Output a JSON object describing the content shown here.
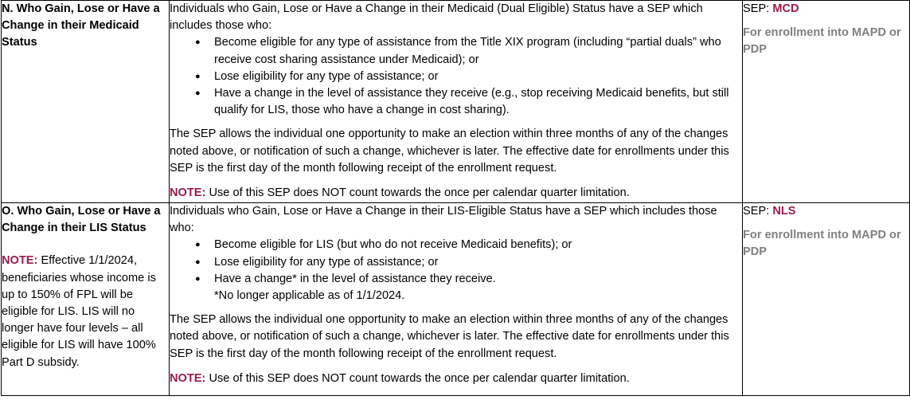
{
  "rows": [
    {
      "col1": {
        "title": "N.  Who Gain, Lose or Have a Change in their Medicaid Status"
      },
      "col2": {
        "intro": "Individuals who Gain, Lose or Have a Change in their Medicaid (Dual Eligible) Status have a SEP which includes those who:",
        "bullets": [
          "Become eligible for any type of assistance from the Title XIX program (including “partial duals” who receive cost sharing assistance under Medicaid); or",
          "Lose eligibility for any type of assistance; or",
          "Have a change in the level of assistance they receive (e.g., stop receiving Medicaid benefits, but still qualify for LIS, those who have a change in cost sharing)."
        ],
        "body": "The SEP allows the individual one opportunity to make an election within three months of any of the changes noted above, or notification of such a change, whichever is later.  The effective date for enrollments under this SEP is the first day of the month following receipt of the enrollment request.",
        "note_label": "NOTE:",
        "note_text": "  Use of this SEP does NOT count towards the once per calendar quarter limitation."
      },
      "col3": {
        "sep_label": "SEP:  ",
        "sep_code": "MCD",
        "enrollment": "For enrollment into MAPD or PDP"
      }
    },
    {
      "col1": {
        "title": "O.  Who Gain, Lose or Have a Change in their LIS Status",
        "note_label": "NOTE:",
        "note_text": "  Effective 1/1/2024, beneficiaries whose income is up to 150% of FPL will be eligible for LIS.  LIS will no longer have four levels – all eligible for LIS will have 100% Part D subsidy."
      },
      "col2": {
        "intro": "Individuals who Gain, Lose or Have a Change in their LIS-Eligible Status have a SEP which includes those who:",
        "bullets": [
          "Become eligible for LIS (but who do not receive Medicaid benefits); or",
          "Lose eligibility for any type of assistance; or",
          "Have a change* in the level of assistance they receive."
        ],
        "bullet_subnote": "*No longer applicable as of 1/1/2024.",
        "body": "The SEP allows the individual one opportunity to make an election within three months of any of the changes noted above, or notification of such a change, whichever is later.  The effective date for enrollments under this SEP is the first day of the month following receipt of the enrollment request.",
        "note_label": "NOTE:",
        "note_text": "  Use of this SEP does NOT count towards the once per calendar quarter limitation."
      },
      "col3": {
        "sep_label": "SEP:  ",
        "sep_code": "NLS",
        "enrollment": "For enrollment into MAPD or PDP"
      }
    }
  ],
  "bullet_icon": "●",
  "colors": {
    "note": "#9a1a4e",
    "enrollment": "#808080",
    "border": "#000000"
  }
}
